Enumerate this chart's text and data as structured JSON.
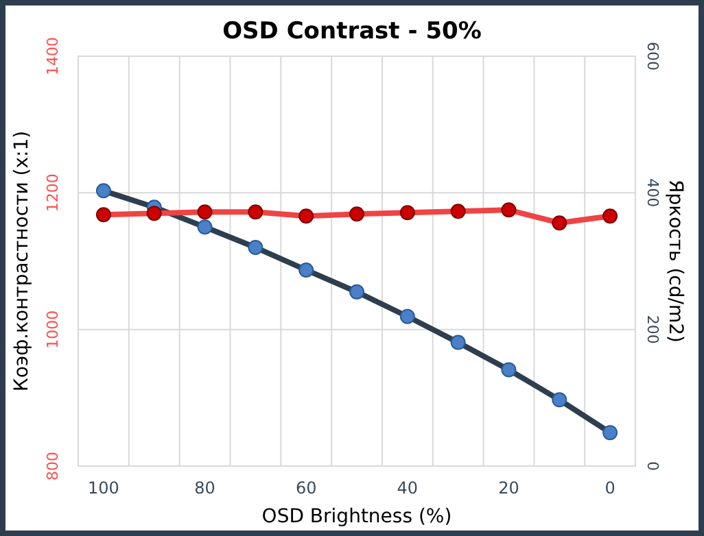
{
  "chart_data": {
    "type": "line",
    "title": "OSD Contrast - 50%",
    "xlabel": "OSD Brightness (%)",
    "ylabel": "Коэф.контрастности (x:1)",
    "y2label": "Яркость (cd/m2)",
    "categories": [
      "100",
      null,
      "80",
      null,
      "60",
      null,
      "40",
      null,
      "20",
      null,
      "0"
    ],
    "series": [
      {
        "color": "#ee4444",
        "values": [
          1168,
          1170,
          1172,
          1172,
          1166,
          1169,
          1171,
          1173,
          1175,
          1156,
          1166
        ]
      },
      {
        "color": "#2e3e4e",
        "axis": "y2",
        "values": [
          403,
          379,
          350,
          320,
          287,
          255,
          219,
          181,
          141,
          97,
          49
        ]
      }
    ],
    "ylim": [
      800,
      1400
    ],
    "yticks": [
      800,
      1000,
      1200,
      1400
    ],
    "y2lim": [
      0,
      600
    ],
    "y2ticks": [
      0,
      200,
      400,
      600
    ],
    "grid": true,
    "marker": "circle",
    "line_style": "solid"
  }
}
